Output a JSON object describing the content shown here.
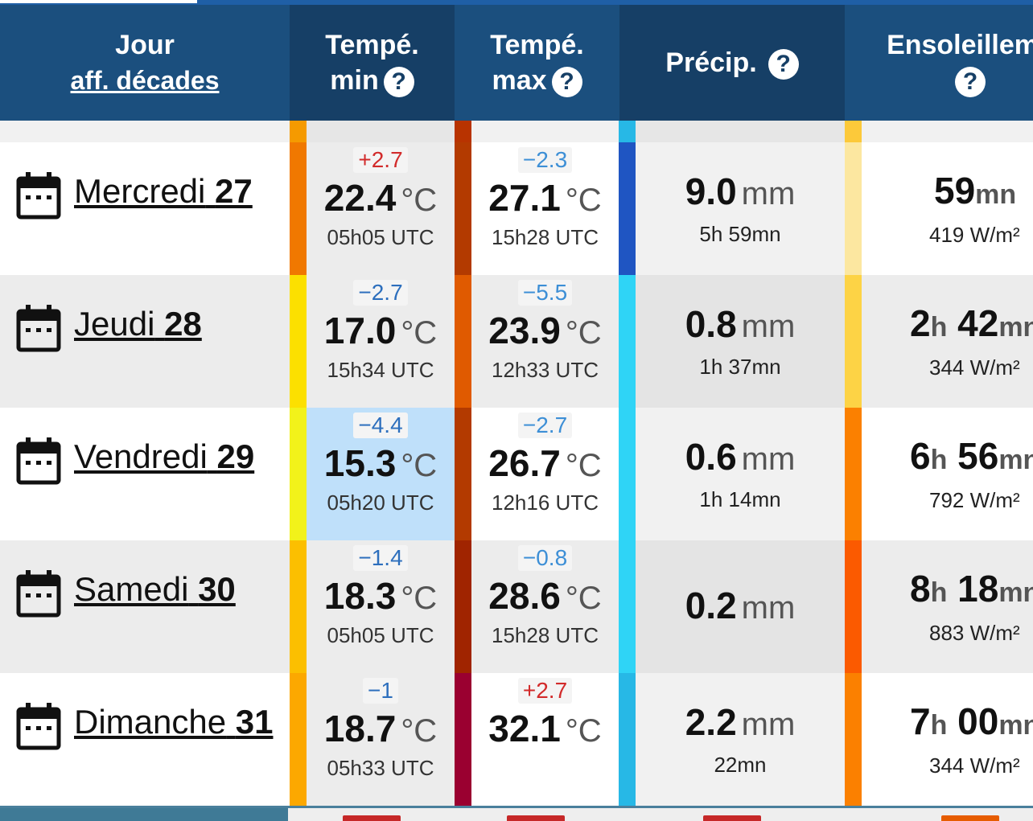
{
  "header": {
    "day_title": "Jour",
    "day_link": "aff. décades",
    "tmin_line1": "Tempé.",
    "tmin_line2": "min",
    "tmax_line1": "Tempé.",
    "tmax_line2": "max",
    "precip": "Précip.",
    "sun": "Ensoleilleme",
    "help_glyph": "?"
  },
  "units": {
    "temp": "°C",
    "precip": "mm"
  },
  "rows": [
    {
      "day": "Mercredi",
      "date": "27",
      "tmin": {
        "dev": "+2.7",
        "value": "22.4",
        "time": "05h05 UTC",
        "bar": "#f07800",
        "bg": "#ececec"
      },
      "tmax": {
        "dev": "−2.3",
        "value": "27.1",
        "time": "15h28 UTC",
        "bar": "#b33a00",
        "bg": "#ffffff"
      },
      "precip": {
        "value": "9.0",
        "sub": "5h 59mn",
        "bar": "#1f55c2"
      },
      "sun": {
        "h": "",
        "m": "59",
        "unit_h": "",
        "unit_m": "mn",
        "sub": "419 W/m²",
        "bar": "#fce7a0"
      }
    },
    {
      "day": "Jeudi",
      "date": "28",
      "tmin": {
        "dev": "−2.7",
        "value": "17.0",
        "time": "15h34 UTC",
        "bar": "#fce000",
        "bg": "#ececec"
      },
      "tmax": {
        "dev": "−5.5",
        "value": "23.9",
        "time": "12h33 UTC",
        "bar": "#e05a00",
        "bg": "#ececec"
      },
      "precip": {
        "value": "0.8",
        "sub": "1h 37mn",
        "bar": "#2fd4f6"
      },
      "sun": {
        "h": "2",
        "m": "42",
        "unit_h": "h",
        "unit_m": "mn",
        "sub": "344 W/m²",
        "bar": "#fdd345"
      }
    },
    {
      "day": "Vendredi",
      "date": "29",
      "tmin": {
        "dev": "−4.4",
        "value": "15.3",
        "time": "05h20 UTC",
        "bar": "#f2f21a",
        "bg": "#bfe0fa"
      },
      "tmax": {
        "dev": "−2.7",
        "value": "26.7",
        "time": "12h16 UTC",
        "bar": "#b33a00",
        "bg": "#ffffff"
      },
      "precip": {
        "value": "0.6",
        "sub": "1h 14mn",
        "bar": "#2fd4f6"
      },
      "sun": {
        "h": "6",
        "m": "56",
        "unit_h": "h",
        "unit_m": "mn",
        "sub": "792 W/m²",
        "bar": "#fb8000"
      }
    },
    {
      "day": "Samedi",
      "date": "30",
      "tmin": {
        "dev": "−1.4",
        "value": "18.3",
        "time": "05h05 UTC",
        "bar": "#fcbf00",
        "bg": "#ececec"
      },
      "tmax": {
        "dev": "−0.8",
        "value": "28.6",
        "time": "15h28 UTC",
        "bar": "#a02400",
        "bg": "#ececec"
      },
      "precip": {
        "value": "0.2",
        "sub": "",
        "bar": "#2fd4f6"
      },
      "sun": {
        "h": "8",
        "m": "18",
        "unit_h": "h",
        "unit_m": "mn",
        "sub": "883 W/m²",
        "bar": "#fb5a00"
      }
    },
    {
      "day": "Dimanche",
      "date": "31",
      "tmin": {
        "dev": "−1",
        "value": "18.7",
        "time": "05h33 UTC",
        "bar": "#fca800",
        "bg": "#ececec"
      },
      "tmax": {
        "dev": "+2.7",
        "value": "32.1",
        "time": "",
        "bar": "#9a0030",
        "bg": "#ffffff"
      },
      "precip": {
        "value": "2.2",
        "sub": "22mn",
        "bar": "#27b8e6"
      },
      "sun": {
        "h": "7",
        "m": "00",
        "unit_h": "h",
        "unit_m": "mn",
        "sub": "344 W/m²",
        "bar": "#fb8000"
      }
    }
  ],
  "spacer_bars": {
    "tmin": "#f59a00",
    "tmax": "#b83300",
    "precip": "#27b8e6",
    "sun": "#fcc93a"
  },
  "colors": {
    "header_dark": "#163f66",
    "header": "#1b4f7e",
    "pos_dev": "#d22b2b",
    "neg_dev": "#2d6fbd"
  }
}
